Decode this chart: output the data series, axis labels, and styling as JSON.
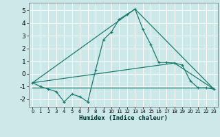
{
  "xlabel": "Humidex (Indice chaleur)",
  "background_color": "#cce8e8",
  "grid_color": "#ffffff",
  "line_color": "#1a7a6e",
  "xlim": [
    -0.5,
    23.5
  ],
  "ylim": [
    -2.6,
    5.6
  ],
  "xticks": [
    0,
    1,
    2,
    3,
    4,
    5,
    6,
    7,
    8,
    9,
    10,
    11,
    12,
    13,
    14,
    15,
    16,
    17,
    18,
    19,
    20,
    21,
    22,
    23
  ],
  "yticks": [
    -2,
    -1,
    0,
    1,
    2,
    3,
    4,
    5
  ],
  "line1_x": [
    0,
    1,
    2,
    3,
    4,
    5,
    6,
    7,
    8,
    9,
    10,
    11,
    12,
    13,
    14,
    15,
    16,
    17,
    18,
    19,
    20,
    21,
    22,
    23
  ],
  "line1_y": [
    -0.7,
    -1.0,
    -1.2,
    -1.4,
    -2.2,
    -1.6,
    -1.8,
    -2.2,
    0.3,
    2.7,
    3.3,
    4.3,
    4.7,
    5.1,
    3.5,
    2.3,
    0.9,
    0.9,
    0.85,
    0.7,
    -0.55,
    -1.1,
    -1.1,
    -1.2
  ],
  "line2_x": [
    0,
    23
  ],
  "line2_y": [
    -1.1,
    -1.1
  ],
  "line3_x": [
    0,
    18,
    23
  ],
  "line3_y": [
    -0.7,
    0.85,
    -1.2
  ],
  "line4_x": [
    0,
    13,
    23
  ],
  "line4_y": [
    -0.7,
    5.1,
    -1.2
  ],
  "figsize": [
    3.2,
    2.0
  ],
  "dpi": 100
}
